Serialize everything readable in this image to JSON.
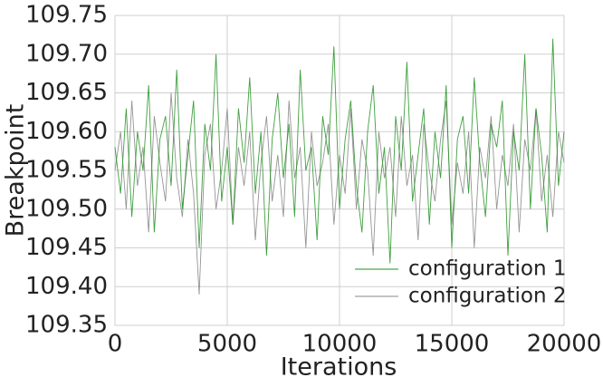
{
  "chart_data": {
    "type": "line",
    "xlabel": "Iterations",
    "ylabel": "Breakpoint",
    "x": [
      0,
      250,
      500,
      750,
      1000,
      1250,
      1500,
      1750,
      2000,
      2250,
      2500,
      2750,
      3000,
      3250,
      3500,
      3750,
      4000,
      4250,
      4500,
      4750,
      5000,
      5250,
      5500,
      5750,
      6000,
      6250,
      6500,
      6750,
      7000,
      7250,
      7500,
      7750,
      8000,
      8250,
      8500,
      8750,
      9000,
      9250,
      9500,
      9750,
      10000,
      10250,
      10500,
      10750,
      11000,
      11250,
      11500,
      11750,
      12000,
      12250,
      12500,
      12750,
      13000,
      13250,
      13500,
      13750,
      14000,
      14250,
      14500,
      14750,
      15000,
      15250,
      15500,
      15750,
      16000,
      16250,
      16500,
      16750,
      17000,
      17250,
      17500,
      17750,
      18000,
      18250,
      18500,
      18750,
      19000,
      19250,
      19500,
      19750,
      20000
    ],
    "series": [
      {
        "name": "configuration 1",
        "color": "#1f8f1f",
        "values": [
          109.58,
          109.52,
          109.63,
          109.49,
          109.6,
          109.55,
          109.66,
          109.47,
          109.59,
          109.62,
          109.53,
          109.68,
          109.5,
          109.57,
          109.64,
          109.45,
          109.61,
          109.55,
          109.7,
          109.51,
          109.58,
          109.48,
          109.63,
          109.56,
          109.67,
          109.52,
          109.6,
          109.44,
          109.59,
          109.65,
          109.54,
          109.61,
          109.49,
          109.68,
          109.55,
          109.58,
          109.46,
          109.62,
          109.57,
          109.71,
          109.5,
          109.59,
          109.64,
          109.53,
          109.47,
          109.6,
          109.66,
          109.52,
          109.58,
          109.43,
          109.62,
          109.55,
          109.69,
          109.51,
          109.57,
          109.63,
          109.48,
          109.6,
          109.54,
          109.66,
          109.45,
          109.59,
          109.62,
          109.52,
          109.67,
          109.56,
          109.49,
          109.61,
          109.58,
          109.64,
          109.44,
          109.6,
          109.55,
          109.7,
          109.5,
          109.63,
          109.57,
          109.47,
          109.72,
          109.53,
          109.6
        ]
      },
      {
        "name": "configuration 2",
        "color": "#8a8a8a",
        "values": [
          109.55,
          109.6,
          109.5,
          109.64,
          109.53,
          109.58,
          109.47,
          109.62,
          109.56,
          109.51,
          109.65,
          109.54,
          109.49,
          109.59,
          109.52,
          109.39,
          109.57,
          109.61,
          109.5,
          109.55,
          109.63,
          109.48,
          109.58,
          109.53,
          109.6,
          109.46,
          109.56,
          109.62,
          109.51,
          109.57,
          109.49,
          109.64,
          109.54,
          109.58,
          109.45,
          109.6,
          109.53,
          109.56,
          109.61,
          109.48,
          109.57,
          109.52,
          109.63,
          109.5,
          109.59,
          109.55,
          109.44,
          109.6,
          109.54,
          109.58,
          109.49,
          109.62,
          109.53,
          109.57,
          109.46,
          109.61,
          109.55,
          109.51,
          109.59,
          109.64,
          109.48,
          109.56,
          109.52,
          109.6,
          109.45,
          109.58,
          109.54,
          109.62,
          109.5,
          109.57,
          109.53,
          109.61,
          109.47,
          109.59,
          109.55,
          109.63,
          109.51,
          109.57,
          109.49,
          109.6,
          109.56
        ]
      }
    ],
    "xlim": [
      0,
      20000
    ],
    "xticks": [
      0,
      5000,
      10000,
      15000,
      20000
    ],
    "ylim": [
      109.35,
      109.75
    ],
    "yticks": [
      109.35,
      {
        "value": 109.4,
        "label": "109.40"
      },
      109.45,
      {
        "value": 109.5,
        "label": "109.50"
      },
      109.55,
      {
        "value": 109.6,
        "label": "109.60"
      },
      109.65,
      {
        "value": 109.7,
        "label": "109.70"
      },
      109.75
    ],
    "grid": true,
    "legend": "lower right"
  }
}
